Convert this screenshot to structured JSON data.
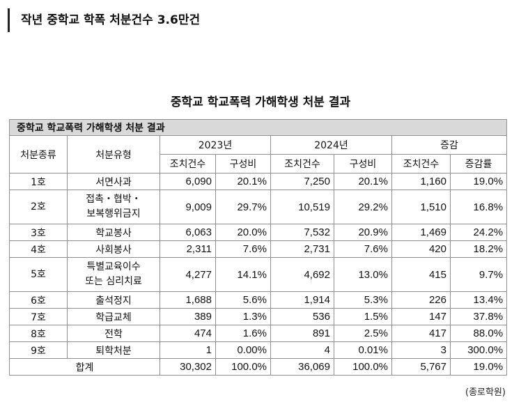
{
  "headline": "작년 중학교 학폭 처분건수 3.6만건",
  "table_title": "중학교 학교폭력 가해학생 처분 결과",
  "table": {
    "caption": "중학교 학교폭력 가해학생 처분 결과",
    "header": {
      "type": "처분종류",
      "kind": "처분유형",
      "y2023": "2023년",
      "y2024": "2024년",
      "change": "증감",
      "count": "조치건수",
      "share": "구성비",
      "rate": "증감률"
    },
    "rows": [
      {
        "type": "1호",
        "kind": [
          "서면사과"
        ],
        "c23": "6,090",
        "s23": "20.1%",
        "c24": "7,250",
        "s24": "20.1%",
        "d": "1,160",
        "r": "19.0%"
      },
      {
        "type": "2호",
        "kind": [
          "접촉・협박・",
          "보복행위금지"
        ],
        "c23": "9,009",
        "s23": "29.7%",
        "c24": "10,519",
        "s24": "29.2%",
        "d": "1,510",
        "r": "16.8%"
      },
      {
        "type": "3호",
        "kind": [
          "학교봉사"
        ],
        "c23": "6,063",
        "s23": "20.0%",
        "c24": "7,532",
        "s24": "20.9%",
        "d": "1,469",
        "r": "24.2%"
      },
      {
        "type": "4호",
        "kind": [
          "사회봉사"
        ],
        "c23": "2,311",
        "s23": "7.6%",
        "c24": "2,731",
        "s24": "7.6%",
        "d": "420",
        "r": "18.2%"
      },
      {
        "type": "5호",
        "kind": [
          "특별교육이수",
          "또는 심리치료"
        ],
        "c23": "4,277",
        "s23": "14.1%",
        "c24": "4,692",
        "s24": "13.0%",
        "d": "415",
        "r": "9.7%"
      },
      {
        "type": "6호",
        "kind": [
          "출석정지"
        ],
        "c23": "1,688",
        "s23": "5.6%",
        "c24": "1,914",
        "s24": "5.3%",
        "d": "226",
        "r": "13.4%"
      },
      {
        "type": "7호",
        "kind": [
          "학급교체"
        ],
        "c23": "389",
        "s23": "1.3%",
        "c24": "536",
        "s24": "1.5%",
        "d": "147",
        "r": "37.8%"
      },
      {
        "type": "8호",
        "kind": [
          "전학"
        ],
        "c23": "474",
        "s23": "1.6%",
        "c24": "891",
        "s24": "2.5%",
        "d": "417",
        "r": "88.0%"
      },
      {
        "type": "9호",
        "kind": [
          "퇴학처분"
        ],
        "c23": "1",
        "s23": "0.00%",
        "c24": "4",
        "s24": "0.01%",
        "d": "3",
        "r": "300.0%"
      }
    ],
    "total": {
      "label": "합계",
      "c23": "30,302",
      "s23": "100.0%",
      "c24": "36,069",
      "s24": "100.0%",
      "d": "5,767",
      "r": "19.0%"
    }
  },
  "source": "(종로학원)"
}
